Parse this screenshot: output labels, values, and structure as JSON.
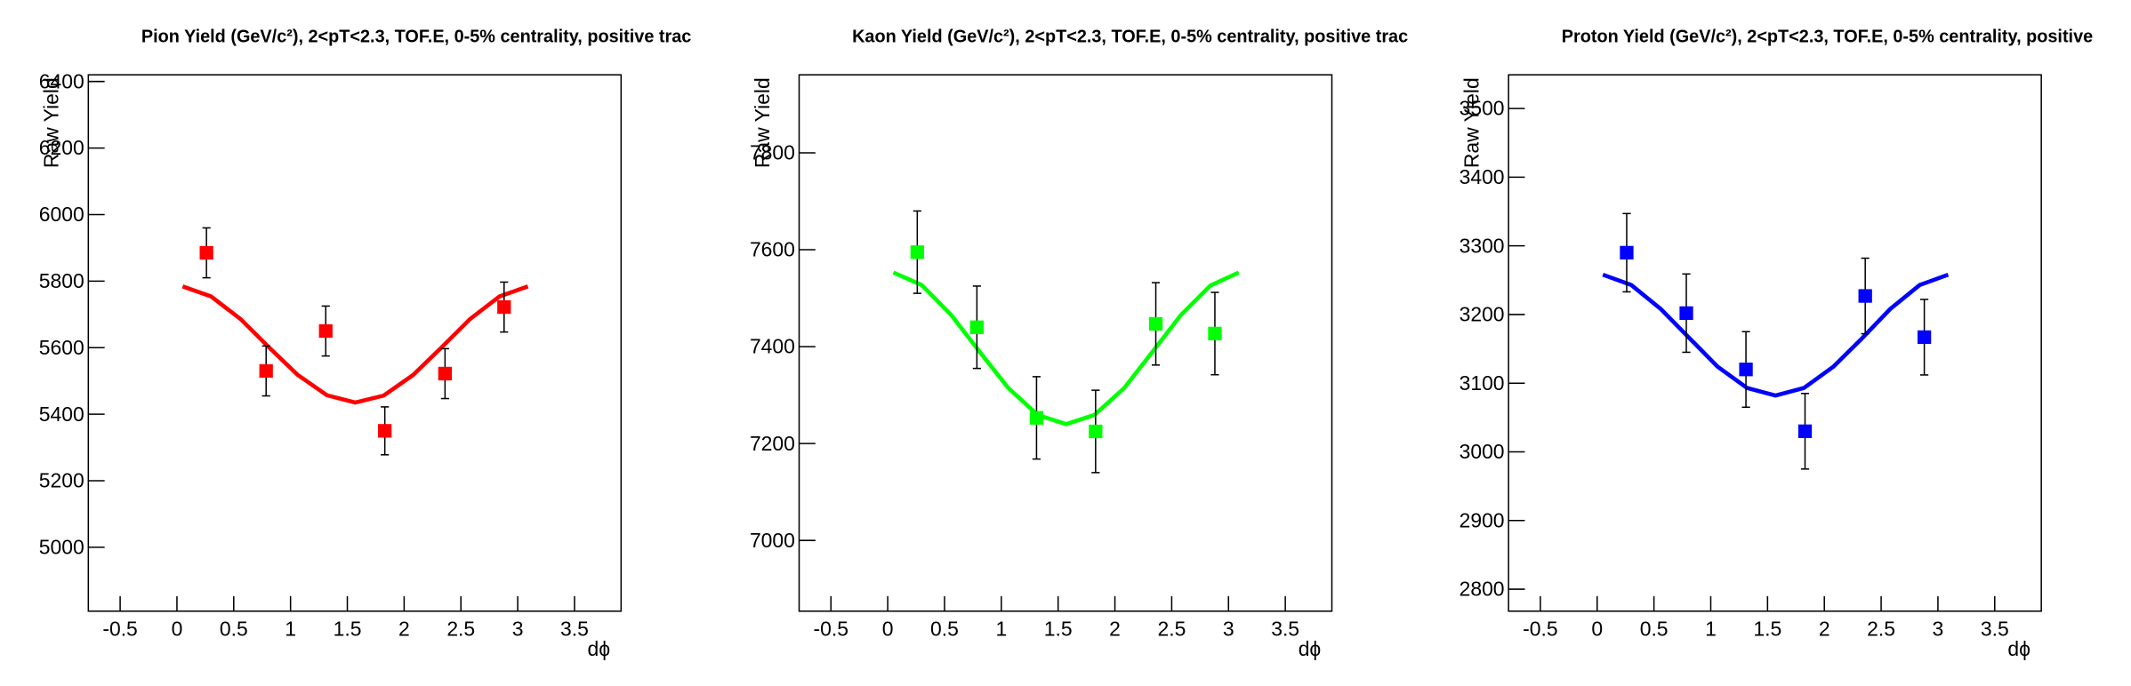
{
  "chart_data": [
    {
      "type": "scatter",
      "title": "Pion Yield (GeV/c²), 2<pT<2.3, TOF.E, 0-5% centrality, positive trac",
      "x_label": "dϕ",
      "y_label": "Raw Yield",
      "xlim": [
        -0.78,
        3.91
      ],
      "xticks": [
        -0.5,
        0,
        0.5,
        1,
        1.5,
        2,
        2.5,
        3,
        3.5
      ],
      "ylim": [
        4808,
        6420
      ],
      "yticks": [
        5000,
        5200,
        5400,
        5600,
        5800,
        6000,
        6200,
        6400
      ],
      "points": {
        "color": "#ff0000",
        "x": [
          0.26,
          0.785,
          1.31,
          1.83,
          2.36,
          2.88
        ],
        "values": [
          5885,
          5530,
          5650,
          5350,
          5522,
          5722
        ],
        "errors": [
          75,
          75,
          75,
          72,
          75,
          75
        ]
      },
      "fit": {
        "color": "#ff0000",
        "x": [
          0.05,
          0.3,
          0.56,
          0.81,
          1.06,
          1.32,
          1.57,
          1.82,
          2.08,
          2.33,
          2.58,
          2.84,
          3.09
        ],
        "values": [
          5784,
          5754,
          5686,
          5601,
          5519,
          5457,
          5435,
          5456,
          5518,
          5601,
          5686,
          5754,
          5784
        ]
      }
    },
    {
      "type": "scatter",
      "title": "Kaon Yield (GeV/c²), 2<pT<2.3, TOF.E, 0-5% centrality, positive trac",
      "x_label": "dϕ",
      "y_label": "Raw Yield",
      "xlim": [
        -0.78,
        3.91
      ],
      "xticks": [
        -0.5,
        0,
        0.5,
        1,
        1.5,
        2,
        2.5,
        3,
        3.5
      ],
      "ylim": [
        6854,
        7961
      ],
      "yticks": [
        7000,
        7200,
        7400,
        7600,
        7800
      ],
      "points": {
        "color": "#00ff00",
        "x": [
          0.26,
          0.785,
          1.31,
          1.83,
          2.36,
          2.88
        ],
        "values": [
          7595,
          7440,
          7253,
          7225,
          7447,
          7427
        ],
        "errors": [
          85,
          85,
          85,
          85,
          85,
          85
        ]
      },
      "fit": {
        "color": "#00ff00",
        "x": [
          0.05,
          0.3,
          0.56,
          0.81,
          1.06,
          1.32,
          1.57,
          1.82,
          2.08,
          2.33,
          2.58,
          2.84,
          3.09
        ],
        "values": [
          7553,
          7527,
          7465,
          7389,
          7315,
          7259,
          7240,
          7259,
          7314,
          7389,
          7465,
          7526,
          7553
        ]
      }
    },
    {
      "type": "scatter",
      "title": "Proton Yield (GeV/c²), 2<pT<2.3, TOF.E, 0-5% centrality, positive",
      "x_label": "dϕ",
      "y_label": "Raw Yield",
      "xlim": [
        -0.78,
        3.91
      ],
      "xticks": [
        -0.5,
        0,
        0.5,
        1,
        1.5,
        2,
        2.5,
        3,
        3.5
      ],
      "ylim": [
        2768,
        3549
      ],
      "yticks": [
        2800,
        2900,
        3000,
        3100,
        3200,
        3300,
        3400,
        3500
      ],
      "points": {
        "color": "#0000ff",
        "x": [
          0.26,
          0.785,
          1.31,
          1.83,
          2.36,
          2.88
        ],
        "values": [
          3290,
          3202,
          3120,
          3030,
          3227,
          3167
        ],
        "errors": [
          57,
          57,
          55,
          55,
          55,
          55
        ]
      },
      "fit": {
        "color": "#0000ff",
        "x": [
          0.05,
          0.3,
          0.56,
          0.81,
          1.06,
          1.32,
          1.57,
          1.82,
          2.08,
          2.33,
          2.58,
          2.84,
          3.09
        ],
        "values": [
          3258,
          3243,
          3208,
          3166,
          3124,
          3093,
          3082,
          3093,
          3124,
          3165,
          3208,
          3243,
          3258
        ]
      }
    }
  ]
}
